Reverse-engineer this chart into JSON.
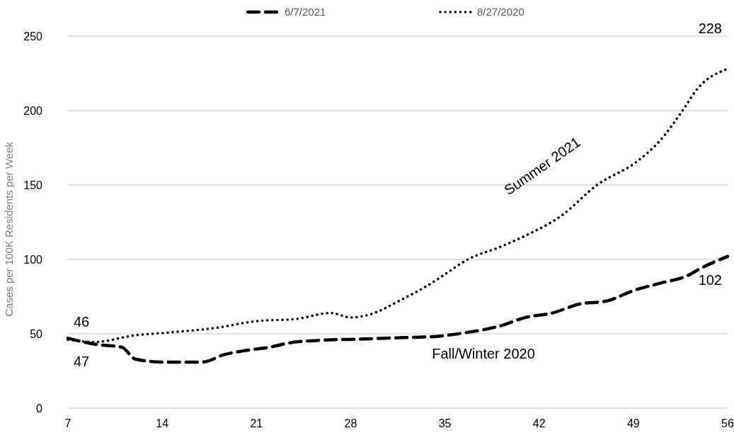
{
  "chart_data": {
    "type": "line",
    "ylabel": "Cases per 100K Residents per Week",
    "xlim": [
      7,
      56
    ],
    "xticks": [
      7,
      14,
      21,
      28,
      35,
      42,
      49,
      56
    ],
    "ylim": [
      0,
      250
    ],
    "yticks": [
      0,
      50,
      100,
      150,
      200,
      250
    ],
    "grid": "y",
    "legend": "top",
    "marker": "none",
    "series": [
      {
        "name": "6/7/2021",
        "color": "#000000",
        "line_style": "dashed",
        "x": [
          7,
          9,
          11,
          12,
          14,
          17,
          18.6,
          20,
          22,
          23.5,
          25.5,
          29,
          32,
          34,
          36.7,
          38,
          39,
          41,
          43,
          45,
          47,
          49,
          51,
          53,
          54,
          56
        ],
        "values": [
          47,
          43,
          41,
          33,
          31,
          31,
          36,
          38.5,
          41,
          44,
          45.5,
          46.5,
          47.5,
          48,
          51,
          53,
          55,
          61,
          64,
          70,
          72,
          79,
          84,
          89,
          94,
          102
        ],
        "value_labels": [
          "47",
          null,
          null,
          null,
          null,
          null,
          null,
          null,
          null,
          null,
          null,
          null,
          null,
          null,
          null,
          null,
          null,
          null,
          null,
          null,
          null,
          null,
          null,
          null,
          null,
          "102"
        ]
      },
      {
        "name": "8/27/2020",
        "color": "#000000",
        "line_style": "dotted",
        "x": [
          7,
          9,
          12,
          14,
          18,
          21,
          24,
          26.5,
          28,
          29,
          32,
          34,
          35,
          36.7,
          39,
          41,
          43.6,
          46.3,
          49.3,
          51,
          52.8,
          53.7,
          56
        ],
        "values": [
          46,
          44.5,
          49,
          50.5,
          54,
          58.5,
          60,
          64,
          61,
          62,
          74,
          84,
          90,
          100,
          108,
          116,
          129,
          150,
          166,
          180,
          202,
          214,
          228
        ],
        "value_labels": [
          "46",
          null,
          null,
          null,
          null,
          null,
          null,
          null,
          null,
          null,
          null,
          null,
          null,
          null,
          null,
          null,
          null,
          null,
          null,
          null,
          null,
          null,
          "228"
        ]
      }
    ],
    "annotations": [
      "Summer 2021",
      "Fall/Winter 2020"
    ]
  }
}
